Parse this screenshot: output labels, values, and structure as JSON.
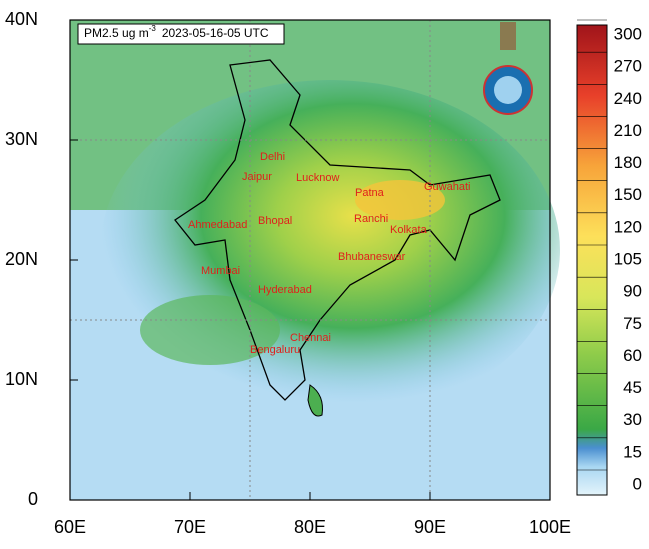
{
  "map": {
    "title": {
      "variable": "PM2.5 ug m",
      "exponent": "-3",
      "time": "2023-05-16-05 UTC"
    },
    "lat_labels": [
      "0",
      "10N",
      "20N",
      "30N",
      "40N"
    ],
    "lon_labels": [
      "60E",
      "70E",
      "80E",
      "90E",
      "100E"
    ],
    "cities": [
      "Delhi",
      "Jaipur",
      "Lucknow",
      "Patna",
      "Guwahati",
      "Ahmedabad",
      "Bhopal",
      "Ranchi",
      "Kolkata",
      "Bhubaneswar",
      "Mumbai",
      "Hyderabad",
      "Chennai",
      "Bengaluru"
    ],
    "colorbar_labels": [
      0,
      15,
      30,
      45,
      60,
      75,
      90,
      105,
      120,
      150,
      180,
      210,
      240,
      270,
      300
    ]
  }
}
